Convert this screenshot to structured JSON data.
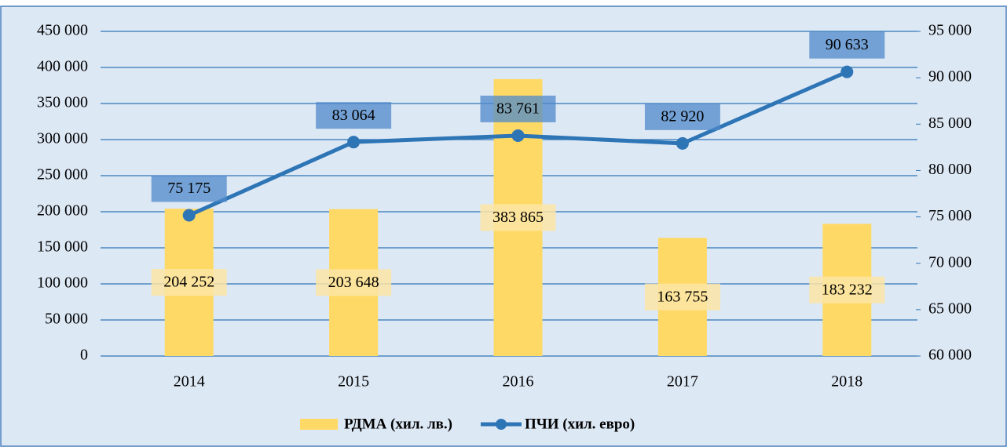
{
  "chart_data": {
    "type": "combo",
    "categories": [
      "2014",
      "2015",
      "2016",
      "2017",
      "2018"
    ],
    "series": [
      {
        "name": "РДМА (хил. лв.)",
        "type": "bar",
        "color": "#ffd966",
        "axis": "y",
        "values": [
          204252,
          203648,
          383865,
          163755,
          183232
        ],
        "value_labels": [
          "204 252",
          "203 648",
          "383 865",
          "163 755",
          "183 232"
        ]
      },
      {
        "name": "ПЧИ (хил. евро)",
        "type": "line",
        "color": "#2e75b6",
        "axis": "y2",
        "values": [
          75175,
          83064,
          83761,
          82920,
          90633
        ],
        "value_labels": [
          "75 175",
          "83 064",
          "83 761",
          "82 920",
          "90 633"
        ]
      }
    ],
    "ylim": [
      0,
      450000
    ],
    "yticks": [
      {
        "value": 0,
        "label": "0"
      },
      {
        "value": 50000,
        "label": "50 000"
      },
      {
        "value": 100000,
        "label": "100 000"
      },
      {
        "value": 150000,
        "label": "150 000"
      },
      {
        "value": 200000,
        "label": "200 000"
      },
      {
        "value": 250000,
        "label": "250 000"
      },
      {
        "value": 300000,
        "label": "300 000"
      },
      {
        "value": 350000,
        "label": "350 000"
      },
      {
        "value": 400000,
        "label": "400 000"
      },
      {
        "value": 450000,
        "label": "450 000"
      }
    ],
    "y2lim": [
      60000,
      95000
    ],
    "y2ticks": [
      {
        "value": 60000,
        "label": "60 000"
      },
      {
        "value": 65000,
        "label": "65 000"
      },
      {
        "value": 70000,
        "label": "70 000"
      },
      {
        "value": 75000,
        "label": "75 000"
      },
      {
        "value": 80000,
        "label": "80 000"
      },
      {
        "value": 85000,
        "label": "85 000"
      },
      {
        "value": 90000,
        "label": "90 000"
      },
      {
        "value": 95000,
        "label": "95 000"
      }
    ],
    "grid": true,
    "legend": "bottom"
  }
}
